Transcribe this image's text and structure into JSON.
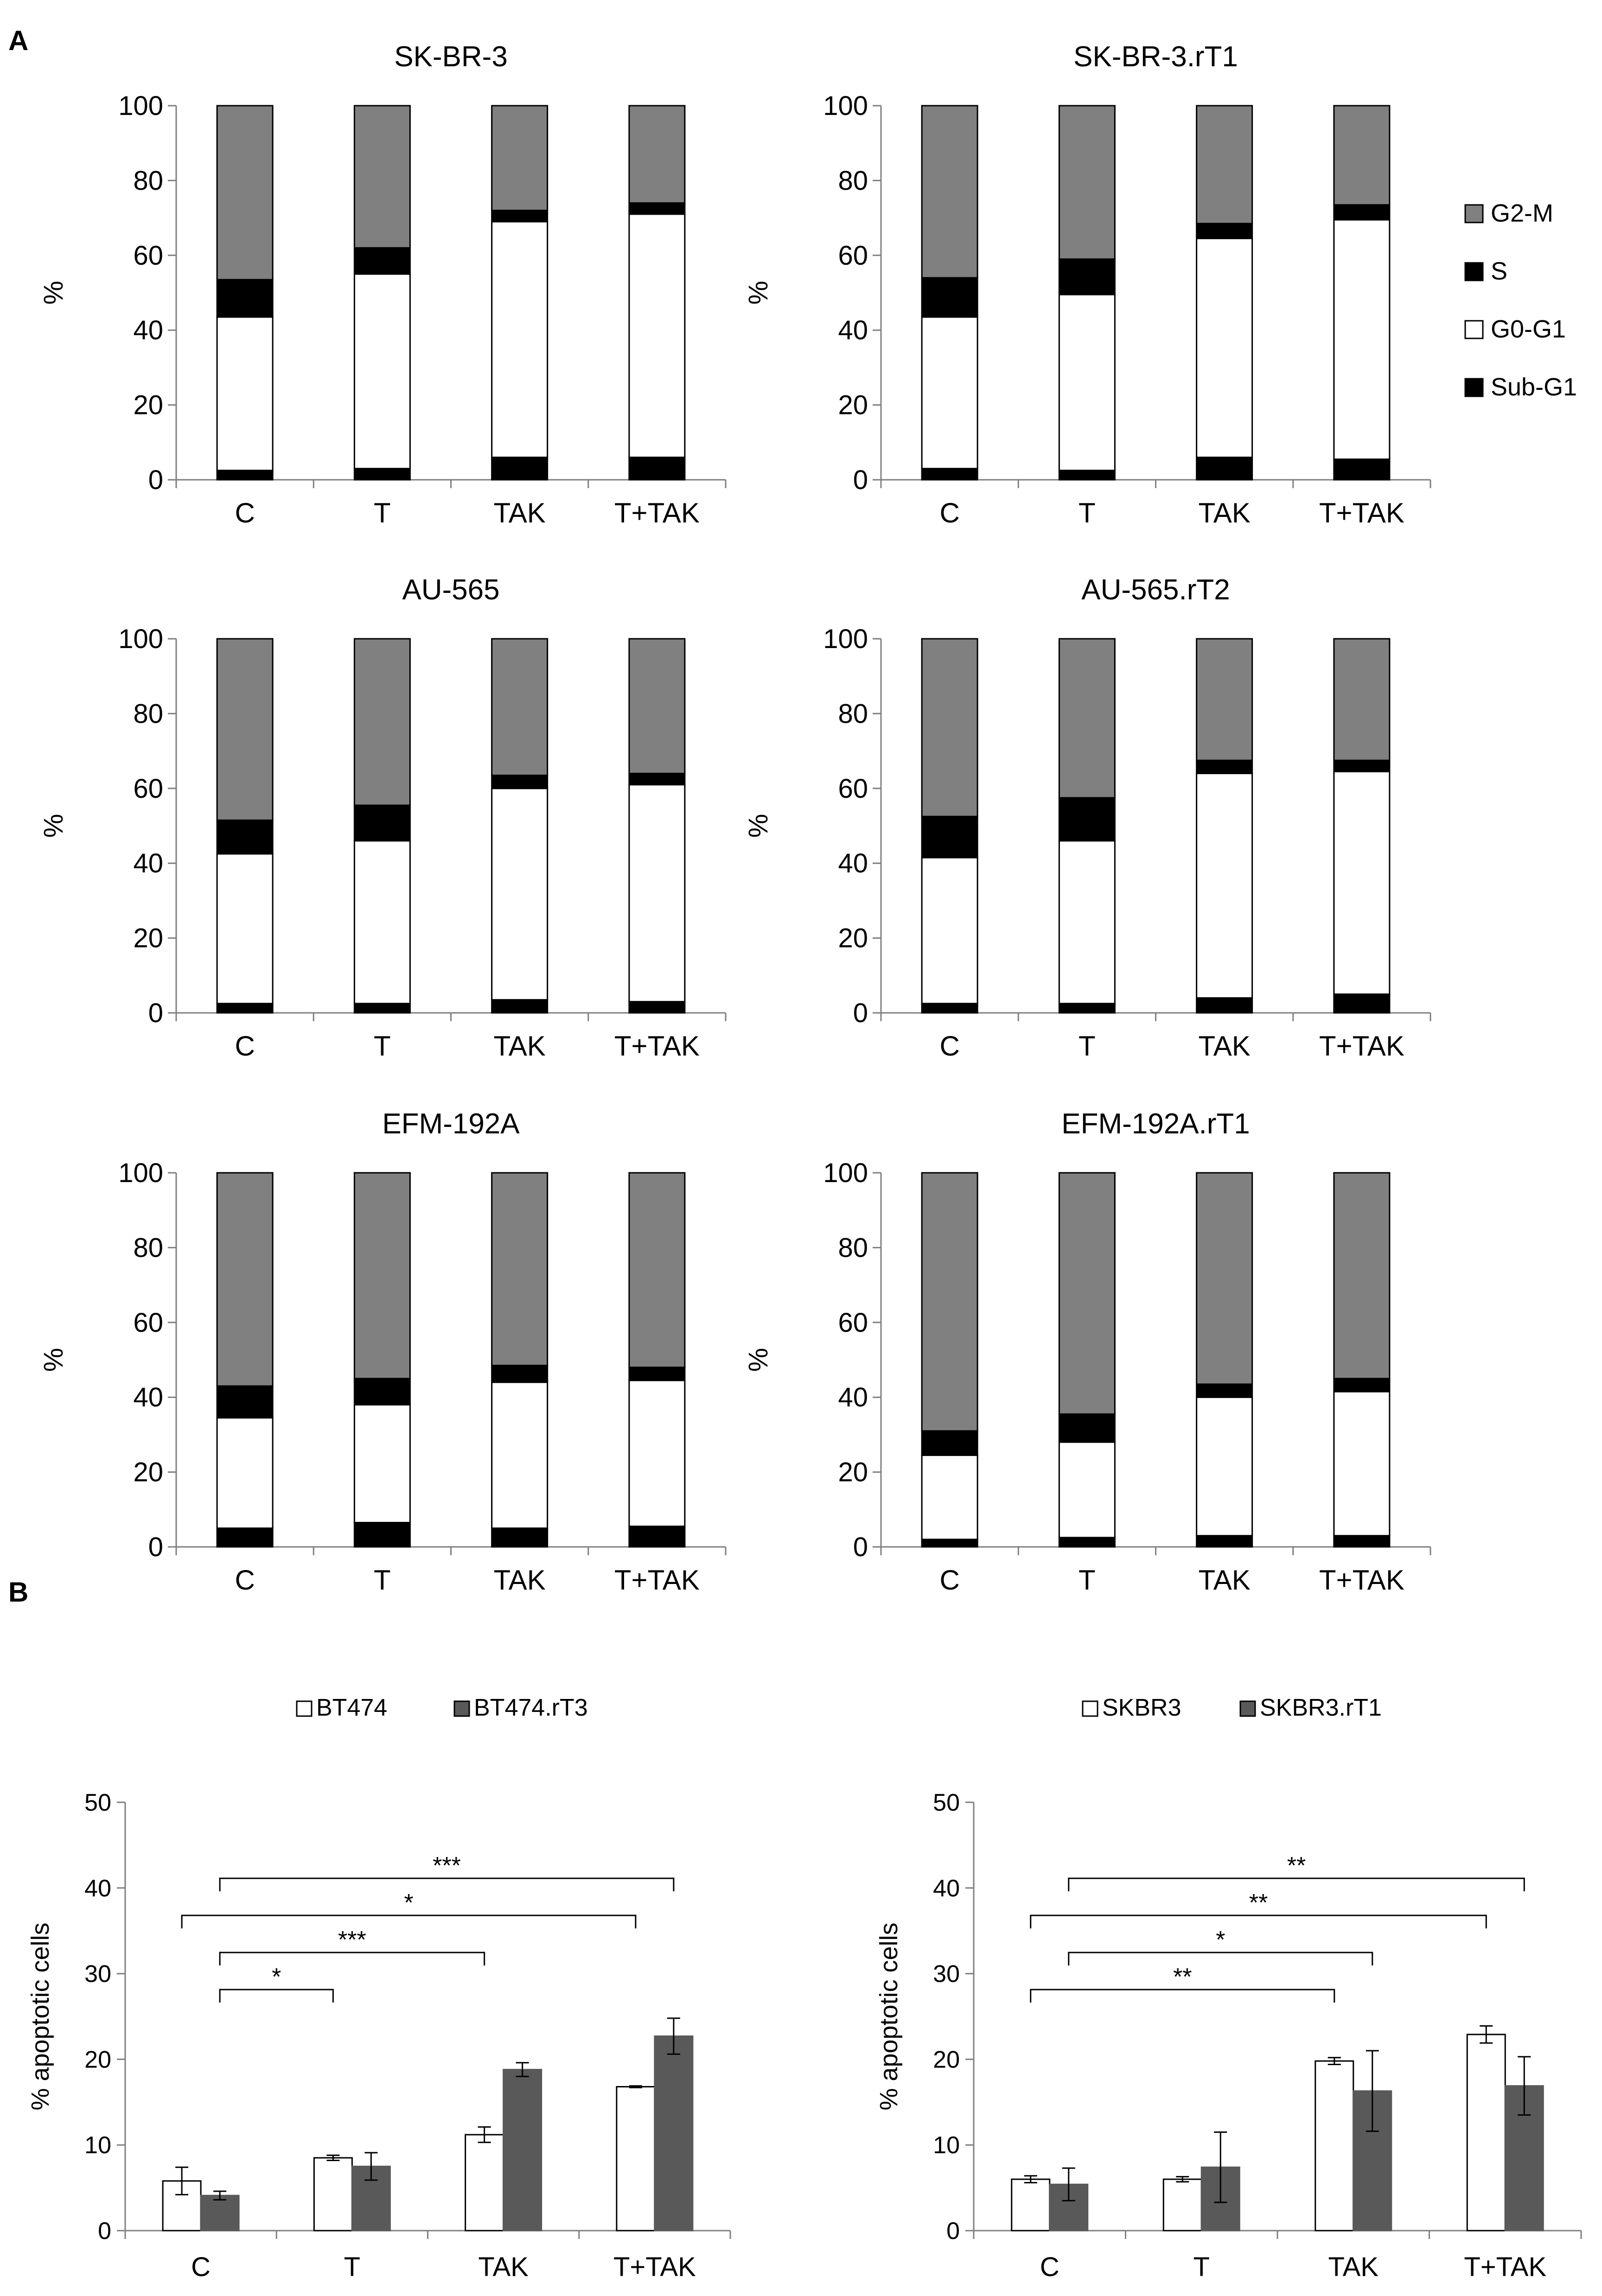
{
  "panel_labels": {
    "a": "A",
    "b": "B"
  },
  "colors": {
    "g2m": "#808080",
    "s": "#000000",
    "g0g1": "#ffffff",
    "subg1": "#000000",
    "dark_bar": "#595959",
    "axis": "#7f7f7f"
  },
  "chart_data": [
    {
      "type": "bar",
      "stacked": true,
      "title": "SK-BR-3",
      "categories": [
        "C",
        "T",
        "TAK",
        "T+TAK"
      ],
      "ylabel": "%",
      "ylim": [
        0,
        100
      ],
      "yticks": [
        "0",
        "20",
        "40",
        "60",
        "80",
        "100"
      ],
      "series": [
        {
          "name": "Sub-G1",
          "values": [
            2.5,
            3,
            6,
            6
          ]
        },
        {
          "name": "G0-G1",
          "values": [
            41,
            52,
            63,
            65
          ]
        },
        {
          "name": "S",
          "values": [
            10,
            7,
            3,
            3
          ]
        },
        {
          "name": "G2-M",
          "values": [
            46.5,
            38,
            28,
            26
          ]
        }
      ]
    },
    {
      "type": "bar",
      "stacked": true,
      "title": "SK-BR-3.rT1",
      "categories": [
        "C",
        "T",
        "TAK",
        "T+TAK"
      ],
      "ylabel": "%",
      "ylim": [
        0,
        100
      ],
      "yticks": [
        "0",
        "20",
        "40",
        "60",
        "80",
        "100"
      ],
      "series": [
        {
          "name": "Sub-G1",
          "values": [
            3,
            2.5,
            6,
            5.5
          ]
        },
        {
          "name": "G0-G1",
          "values": [
            40.5,
            47,
            58.5,
            64
          ]
        },
        {
          "name": "S",
          "values": [
            10.5,
            9.5,
            4,
            4
          ]
        },
        {
          "name": "G2-M",
          "values": [
            46,
            41,
            31.5,
            26.5
          ]
        }
      ]
    },
    {
      "type": "bar",
      "stacked": true,
      "title": "AU-565",
      "categories": [
        "C",
        "T",
        "TAK",
        "T+TAK"
      ],
      "ylabel": "%",
      "ylim": [
        0,
        100
      ],
      "yticks": [
        "0",
        "20",
        "40",
        "60",
        "80",
        "100"
      ],
      "series": [
        {
          "name": "Sub-G1",
          "values": [
            2.5,
            2.5,
            3.5,
            3
          ]
        },
        {
          "name": "G0-G1",
          "values": [
            40,
            43.5,
            56.5,
            58
          ]
        },
        {
          "name": "S",
          "values": [
            9,
            9.5,
            3.5,
            3
          ]
        },
        {
          "name": "G2-M",
          "values": [
            48.5,
            44.5,
            36.5,
            36
          ]
        }
      ]
    },
    {
      "type": "bar",
      "stacked": true,
      "title": "AU-565.rT2",
      "categories": [
        "C",
        "T",
        "TAK",
        "T+TAK"
      ],
      "ylabel": "%",
      "ylim": [
        0,
        100
      ],
      "yticks": [
        "0",
        "20",
        "40",
        "60",
        "80",
        "100"
      ],
      "series": [
        {
          "name": "Sub-G1",
          "values": [
            2.5,
            2.5,
            4,
            5
          ]
        },
        {
          "name": "G0-G1",
          "values": [
            39,
            43.5,
            60,
            59.5
          ]
        },
        {
          "name": "S",
          "values": [
            11,
            11.5,
            3.5,
            3
          ]
        },
        {
          "name": "G2-M",
          "values": [
            47.5,
            42.5,
            32.5,
            32.5
          ]
        }
      ]
    },
    {
      "type": "bar",
      "stacked": true,
      "title": "EFM-192A",
      "categories": [
        "C",
        "T",
        "TAK",
        "T+TAK"
      ],
      "ylabel": "%",
      "ylim": [
        0,
        100
      ],
      "yticks": [
        "0",
        "20",
        "40",
        "60",
        "80",
        "100"
      ],
      "series": [
        {
          "name": "Sub-G1",
          "values": [
            5,
            6.5,
            5,
            5.5
          ]
        },
        {
          "name": "G0-G1",
          "values": [
            29.5,
            31.5,
            39,
            39
          ]
        },
        {
          "name": "S",
          "values": [
            8.5,
            7,
            4.5,
            3.5
          ]
        },
        {
          "name": "G2-M",
          "values": [
            57,
            55,
            51.5,
            52
          ]
        }
      ]
    },
    {
      "type": "bar",
      "stacked": true,
      "title": "EFM-192A.rT1",
      "categories": [
        "C",
        "T",
        "TAK",
        "T+TAK"
      ],
      "ylabel": "%",
      "ylim": [
        0,
        100
      ],
      "yticks": [
        "0",
        "20",
        "40",
        "60",
        "80",
        "100"
      ],
      "series": [
        {
          "name": "Sub-G1",
          "values": [
            2,
            2.5,
            3,
            3
          ]
        },
        {
          "name": "G0-G1",
          "values": [
            22.5,
            25.5,
            37,
            38.5
          ]
        },
        {
          "name": "S",
          "values": [
            6.5,
            7.5,
            3.5,
            3.5
          ]
        },
        {
          "name": "G2-M",
          "values": [
            69,
            64.5,
            56.5,
            55
          ]
        }
      ]
    },
    {
      "type": "bar",
      "title": "",
      "categories": [
        "C",
        "T",
        "TAK",
        "T+TAK"
      ],
      "ylabel": "% apoptotic cells",
      "ylim": [
        0,
        50
      ],
      "yticks": [
        "0",
        "10",
        "20",
        "30",
        "40",
        "50"
      ],
      "legend_position": "top",
      "series": [
        {
          "name": "BT474",
          "values": [
            5.8,
            8.5,
            11.2,
            16.8
          ],
          "errors": [
            1.6,
            0.3,
            0.9,
            0.1
          ]
        },
        {
          "name": "BT474.rT3",
          "values": [
            4.1,
            7.5,
            18.8,
            22.7
          ],
          "errors": [
            0.5,
            1.6,
            0.8,
            2.1
          ]
        }
      ],
      "significance": [
        {
          "from": "BT474.rT3:C",
          "to": "BT474:T",
          "label": "*"
        },
        {
          "from": "BT474.rT3:C",
          "to": "BT474:TAK",
          "label": "***"
        },
        {
          "from": "BT474:C",
          "to": "BT474:T+TAK",
          "label": "*"
        },
        {
          "from": "BT474.rT3:C",
          "to": "BT474.rT3:T+TAK",
          "label": "***"
        }
      ]
    },
    {
      "type": "bar",
      "title": "",
      "categories": [
        "C",
        "T",
        "TAK",
        "T+TAK"
      ],
      "ylabel": "% apoptotic cells",
      "ylim": [
        0,
        50
      ],
      "yticks": [
        "0",
        "10",
        "20",
        "30",
        "40",
        "50"
      ],
      "legend_position": "top",
      "series": [
        {
          "name": "SKBR3",
          "values": [
            6.0,
            6.0,
            19.8,
            22.9
          ],
          "errors": [
            0.4,
            0.3,
            0.4,
            1.0
          ]
        },
        {
          "name": "SKBR3.rT1",
          "values": [
            5.4,
            7.4,
            16.3,
            16.9
          ],
          "errors": [
            1.9,
            4.1,
            4.7,
            3.4
          ]
        }
      ],
      "significance": [
        {
          "from": "SKBR3:C",
          "to": "SKBR3:TAK",
          "label": "**"
        },
        {
          "from": "SKBR3.rT1:C",
          "to": "SKBR3.rT1:TAK",
          "label": "*"
        },
        {
          "from": "SKBR3:C",
          "to": "SKBR3:T+TAK",
          "label": "**"
        },
        {
          "from": "SKBR3.rT1:C",
          "to": "SKBR3.rT1:T+TAK",
          "label": "**"
        }
      ]
    }
  ]
}
